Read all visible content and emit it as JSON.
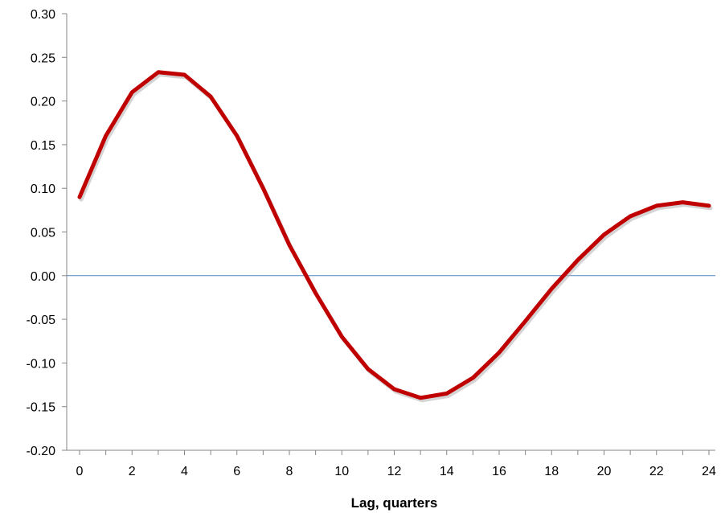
{
  "chart_data": {
    "type": "line",
    "title": "",
    "xlabel": "Lag, quarters",
    "ylabel": "",
    "xlim": [
      0,
      24
    ],
    "ylim": [
      -0.2,
      0.3
    ],
    "x_ticks": [
      0,
      2,
      4,
      6,
      8,
      10,
      12,
      14,
      16,
      18,
      20,
      22,
      24
    ],
    "x_tick_labels": [
      "0",
      "2",
      "4",
      "6",
      "8",
      "10",
      "12",
      "14",
      "16",
      "18",
      "20",
      "22",
      "24"
    ],
    "y_ticks": [
      -0.2,
      -0.15,
      -0.1,
      -0.05,
      0,
      0.05,
      0.1,
      0.15,
      0.2,
      0.25,
      0.3
    ],
    "y_tick_labels": [
      "-0.20",
      "-0.15",
      "-0.10",
      "-0.05",
      "0.00",
      "0.05",
      "0.10",
      "0.15",
      "0.20",
      "0.25",
      "0.30"
    ],
    "grid": false,
    "legend": "none",
    "zero_line": true,
    "series": [
      {
        "color": "#C00000",
        "x": [
          0,
          1,
          2,
          3,
          4,
          5,
          6,
          7,
          8,
          9,
          10,
          11,
          12,
          13,
          14,
          15,
          16,
          17,
          18,
          19,
          20,
          21,
          22,
          23,
          24
        ],
        "values": [
          0.09,
          0.16,
          0.21,
          0.233,
          0.23,
          0.205,
          0.16,
          0.1,
          0.035,
          -0.02,
          -0.07,
          -0.107,
          -0.13,
          -0.14,
          -0.135,
          -0.117,
          -0.088,
          -0.052,
          -0.015,
          0.018,
          0.047,
          0.068,
          0.08,
          0.084,
          0.08
        ]
      }
    ],
    "colors": {
      "axis": "#868686",
      "zero_line": "#4F81BD",
      "series_shadow": "#b0b0b0"
    }
  }
}
